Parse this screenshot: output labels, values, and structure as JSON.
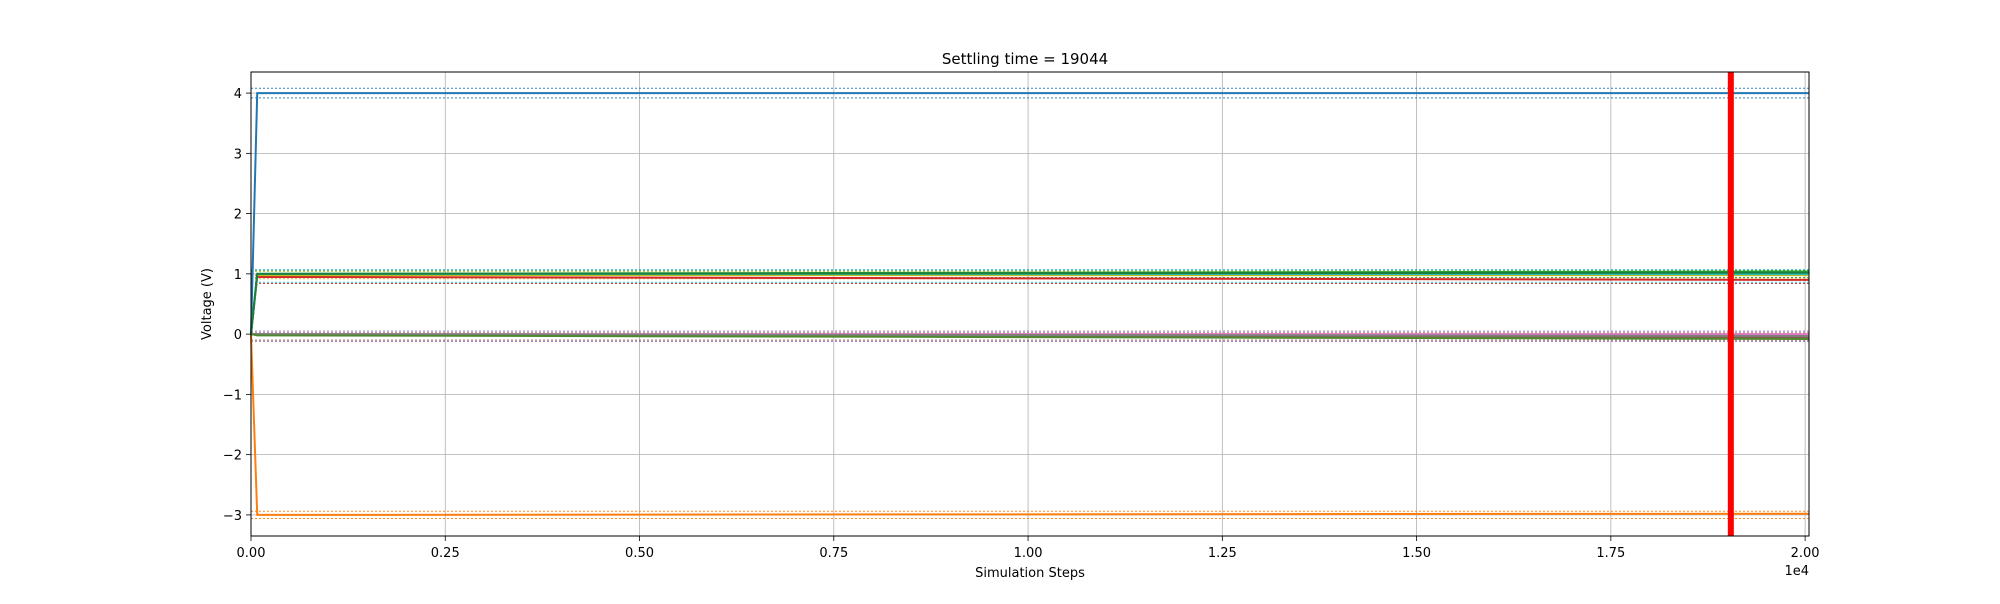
{
  "chart_data": {
    "type": "line",
    "title": "Settling time = 19044",
    "xlabel": "Simulation Steps",
    "ylabel": "Voltage (V)",
    "x_offset_label": "1e4",
    "xlim": [
      0,
      20050
    ],
    "ylim": [
      -3.35,
      4.35
    ],
    "xticks": [
      0,
      2500,
      5000,
      7500,
      10000,
      12500,
      15000,
      17500,
      20000
    ],
    "xtick_labels": [
      "0.00",
      "0.25",
      "0.50",
      "0.75",
      "1.00",
      "1.25",
      "1.50",
      "1.75",
      "2.00"
    ],
    "yticks": [
      -3,
      -2,
      -1,
      0,
      1,
      2,
      3,
      4
    ],
    "ytick_labels": [
      "−3",
      "−2",
      "−1",
      "0",
      "1",
      "2",
      "3",
      "4"
    ],
    "grid": true,
    "settling_line": {
      "x": 19044,
      "color": "#ff0000"
    },
    "series": [
      {
        "color": "#1f77b4",
        "x": [
          0,
          80,
          20050
        ],
        "y": [
          0,
          4.0,
          4.0
        ]
      },
      {
        "color": "#ff7f0e",
        "x": [
          0,
          80,
          20050
        ],
        "y": [
          0,
          -3.0,
          -2.98
        ]
      },
      {
        "color": "#2ca02c",
        "x": [
          0,
          80,
          20050
        ],
        "y": [
          0,
          1.0,
          1.04
        ]
      },
      {
        "color": "#d62728",
        "x": [
          0,
          80,
          20050
        ],
        "y": [
          0,
          0.95,
          0.9
        ]
      },
      {
        "color": "#9467bd",
        "x": [
          0,
          80,
          20050
        ],
        "y": [
          0,
          0.0,
          -0.05
        ]
      },
      {
        "color": "#8c564b",
        "x": [
          0,
          80,
          20050
        ],
        "y": [
          0,
          0.0,
          -0.06
        ]
      },
      {
        "color": "#e377c2",
        "x": [
          0,
          80,
          20050
        ],
        "y": [
          0,
          0.0,
          0.0
        ]
      },
      {
        "color": "#7f7f7f",
        "x": [
          0,
          80,
          20050
        ],
        "y": [
          0,
          0.0,
          -0.03
        ]
      },
      {
        "color": "#bcbd22",
        "x": [
          0,
          80,
          20050
        ],
        "y": [
          0,
          0.98,
          0.98
        ]
      },
      {
        "color": "#17becf",
        "x": [
          0,
          80,
          20050
        ],
        "y": [
          0,
          1.0,
          1.0
        ]
      },
      {
        "color": "#1a7f3a",
        "x": [
          0,
          80,
          20050
        ],
        "y": [
          0,
          1.0,
          1.02
        ]
      },
      {
        "color": "#4d8a2f",
        "x": [
          0,
          80,
          20050
        ],
        "y": [
          0,
          -0.02,
          -0.08
        ]
      }
    ],
    "tolerance_bands": [
      {
        "color": "#1f77b4",
        "y": [
          3.92,
          4.08
        ]
      },
      {
        "color": "#ff7f0e",
        "y": [
          -2.94,
          -3.06
        ]
      },
      {
        "color": "#2ca02c",
        "y": [
          1.06,
          0.94
        ]
      },
      {
        "color": "#d62728",
        "y": [
          0.98,
          0.84
        ]
      },
      {
        "color": "#9467bd",
        "y": [
          0.05,
          -0.12
        ]
      },
      {
        "color": "#bcbd22",
        "y": [
          1.04,
          0.92
        ]
      },
      {
        "color": "#17becf",
        "y": [
          1.07,
          0.86
        ]
      },
      {
        "color": "#8c564b",
        "y": [
          0.02,
          -0.1
        ]
      }
    ]
  }
}
